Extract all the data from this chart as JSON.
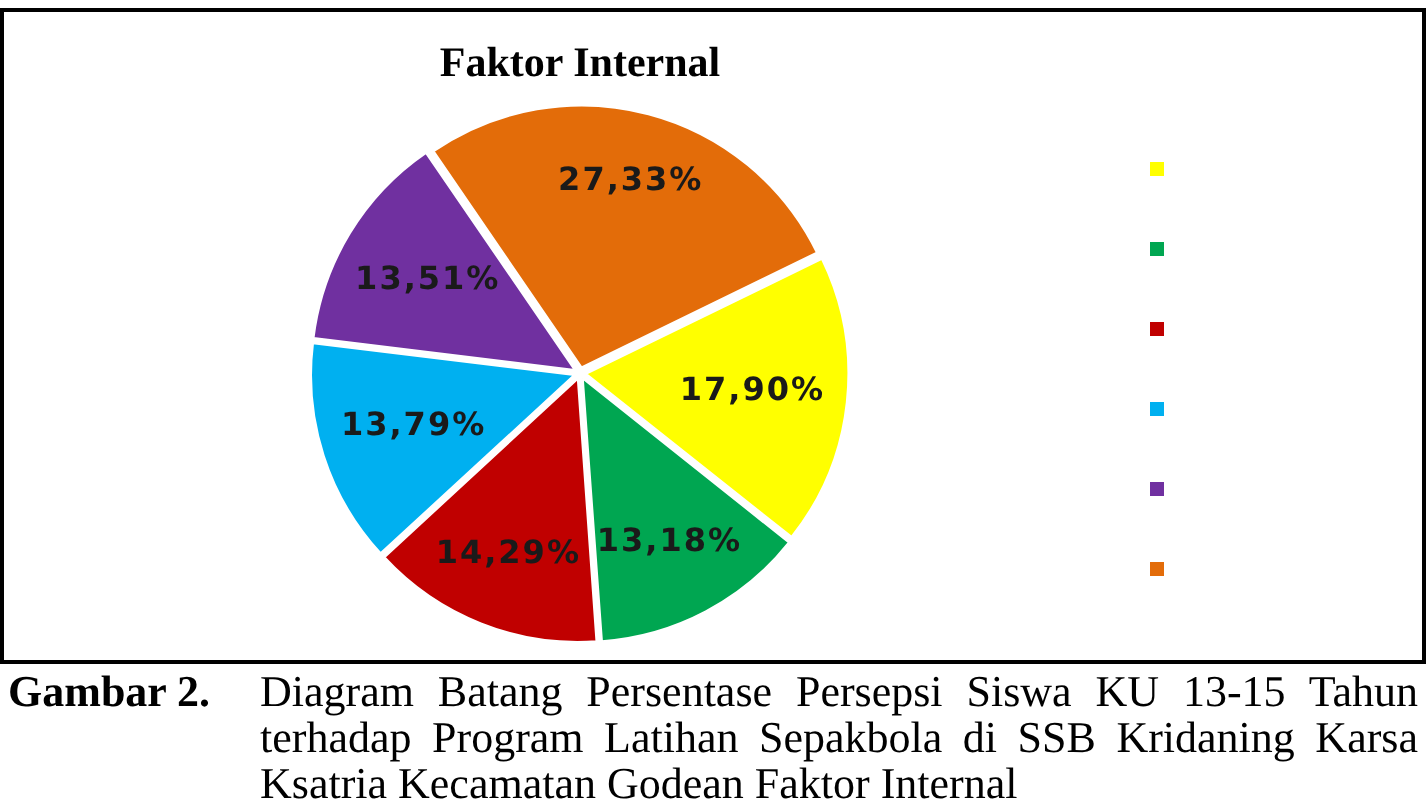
{
  "chart_data": {
    "type": "pie",
    "title": "Faktor Internal",
    "categories": [
      null,
      null,
      null,
      null,
      null,
      null
    ],
    "values": [
      17.9,
      13.18,
      14.29,
      13.79,
      13.51,
      27.33
    ],
    "colors": [
      "#ffff00",
      "#00a651",
      "#c00000",
      "#00b0f0",
      "#7030a0",
      "#e36c09"
    ],
    "value_labels": [
      "17,90%",
      "13,18%",
      "14,29%",
      "13,79%",
      "13,51%",
      "27,33%"
    ],
    "annotations": [
      "Gambar 2.",
      "Diagram Batang Persentase Persepsi Siswa KU 13-15 Tahun terhadap Program Latihan Sepakbola di SSB Kridaning Karsa Ksatria Kecamatan Godean Faktor Internal"
    ]
  }
}
